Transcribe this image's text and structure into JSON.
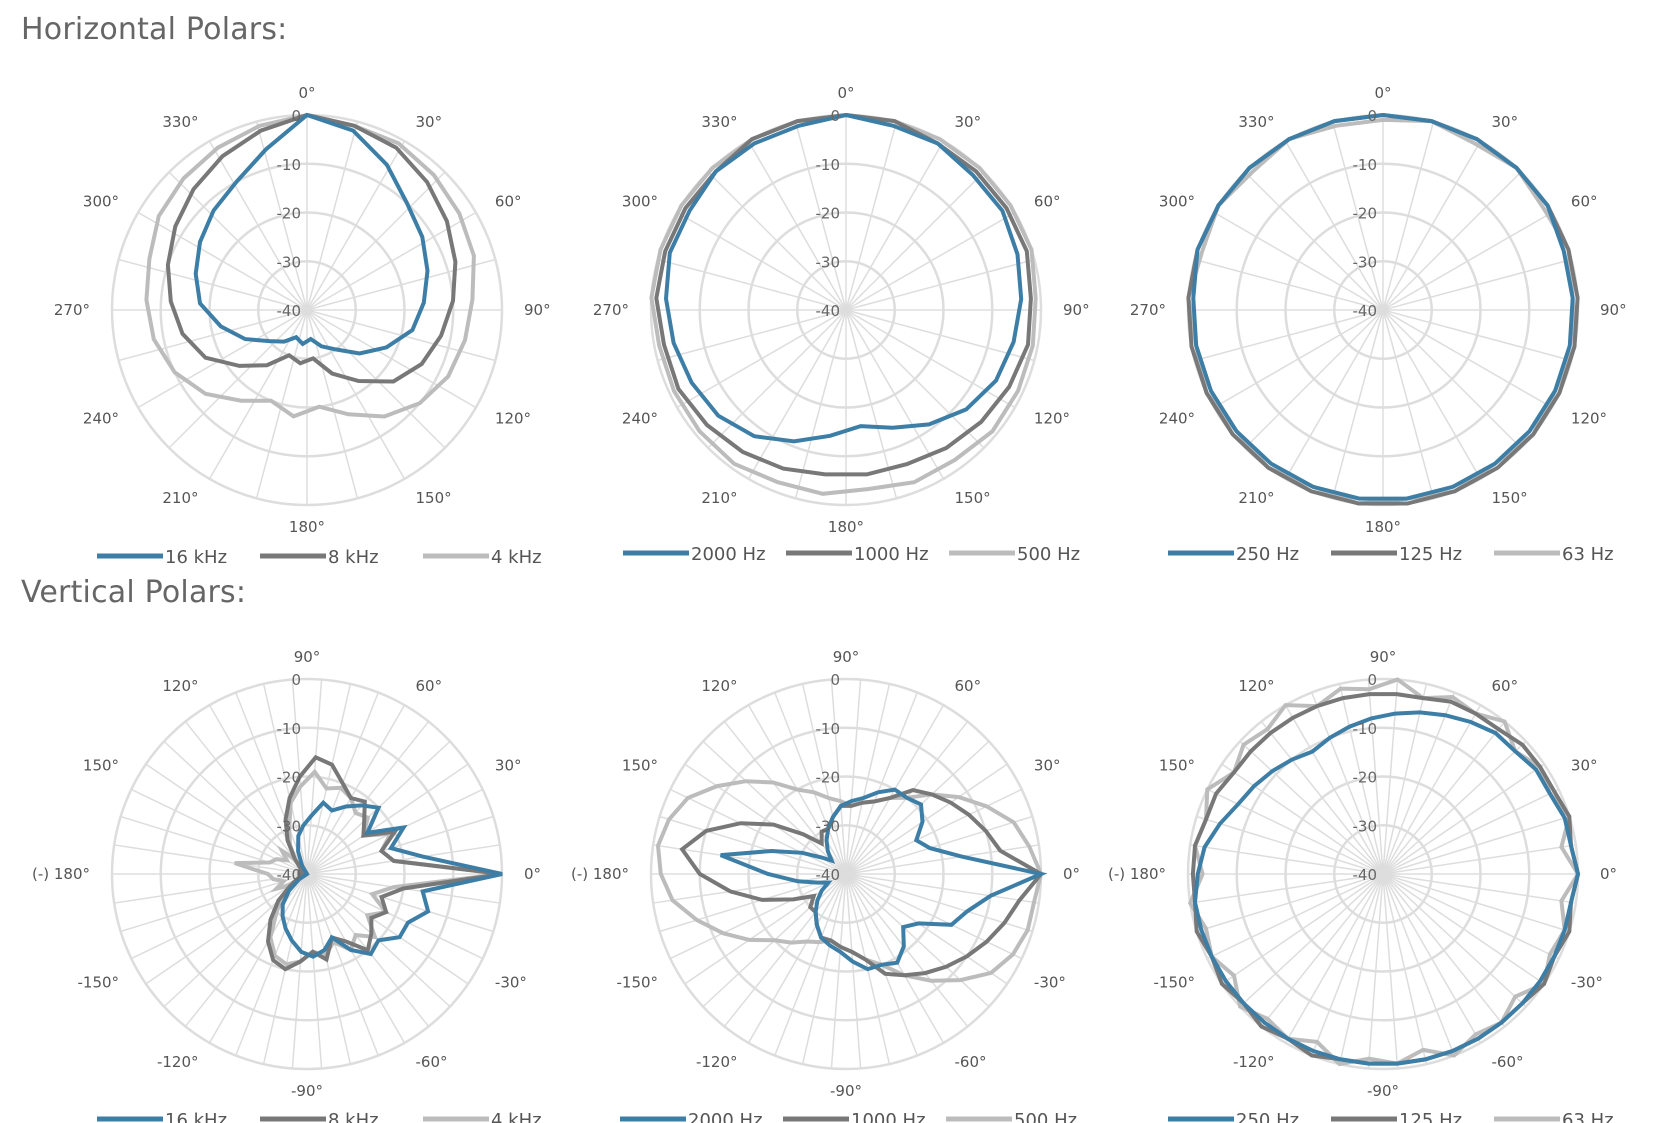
{
  "sections": {
    "horizontal": {
      "title": "Horizontal Polars:"
    },
    "vertical": {
      "title": "Vertical Polars:"
    }
  },
  "colors": {
    "series": [
      "#3d7ea6",
      "#787878",
      "#bcbcbc"
    ],
    "grid": "#dddddd"
  },
  "chart_data": [
    {
      "type": "polar",
      "group": "horizontal",
      "radial_ticks": [
        "0",
        "-10",
        "-20",
        "-30",
        "-40"
      ],
      "rlim": [
        -40,
        0
      ],
      "angle_labels": [
        {
          "deg": 0,
          "text": "0°"
        },
        {
          "deg": 30,
          "text": "30°"
        },
        {
          "deg": 60,
          "text": "60°"
        },
        {
          "deg": 90,
          "text": "90°"
        },
        {
          "deg": 120,
          "text": "120°"
        },
        {
          "deg": 150,
          "text": "150°"
        },
        {
          "deg": 180,
          "text": "180°"
        },
        {
          "deg": 210,
          "text": "210°"
        },
        {
          "deg": 240,
          "text": "240°"
        },
        {
          "deg": 270,
          "text": "270°"
        },
        {
          "deg": 300,
          "text": "300°"
        },
        {
          "deg": 330,
          "text": "330°"
        }
      ],
      "series": [
        {
          "name": "16 kHz",
          "values": [
            0,
            -2,
            -6,
            -10,
            -12,
            -14,
            -16,
            -18,
            -22,
            -26,
            -30,
            -32,
            -34,
            -33,
            -34,
            -32,
            -30,
            -26,
            -22,
            -18,
            -16,
            -14,
            -12,
            -10,
            -6
          ]
        },
        {
          "name": "8 kHz",
          "values": [
            0,
            -1,
            -2,
            -4,
            -6,
            -8,
            -10,
            -12,
            -14,
            -17,
            -22,
            -26,
            -30,
            -29,
            -30,
            -26,
            -22,
            -17,
            -14,
            -12,
            -10,
            -8,
            -6,
            -4,
            -2
          ]
        },
        {
          "name": "4 kHz",
          "values": [
            0,
            -1,
            -1,
            -2,
            -3,
            -4,
            -6,
            -7,
            -8,
            -10,
            -13,
            -17,
            -20,
            -18,
            -20,
            -17,
            -13,
            -10,
            -8,
            -7,
            -6,
            -4,
            -3,
            -2,
            -1
          ]
        }
      ]
    },
    {
      "type": "polar",
      "group": "horizontal",
      "radial_ticks": [
        "0",
        "-10",
        "-20",
        "-30",
        "-40"
      ],
      "rlim": [
        -40,
        0
      ],
      "angle_labels": [
        {
          "deg": 0,
          "text": "0°"
        },
        {
          "deg": 30,
          "text": "30°"
        },
        {
          "deg": 60,
          "text": "60°"
        },
        {
          "deg": 90,
          "text": "90°"
        },
        {
          "deg": 120,
          "text": "120°"
        },
        {
          "deg": 150,
          "text": "150°"
        },
        {
          "deg": 180,
          "text": "180°"
        },
        {
          "deg": 210,
          "text": "210°"
        },
        {
          "deg": 240,
          "text": "240°"
        },
        {
          "deg": 270,
          "text": "270°"
        },
        {
          "deg": 300,
          "text": "300°"
        },
        {
          "deg": 330,
          "text": "330°"
        }
      ],
      "series": [
        {
          "name": "2000 Hz",
          "values": [
            0,
            -1,
            -1,
            -2,
            -2,
            -3,
            -4,
            -5,
            -6,
            -8,
            -11,
            -14,
            -16,
            -14,
            -11,
            -8,
            -6,
            -5,
            -4,
            -3,
            -2,
            -2,
            -1,
            -1,
            -1
          ]
        },
        {
          "name": "1000 Hz",
          "values": [
            0,
            0,
            -1,
            -1,
            -1,
            -1,
            -2,
            -2,
            -3,
            -4,
            -5,
            -6,
            -6,
            -6,
            -5,
            -4,
            -3,
            -2,
            -2,
            -1,
            -1,
            -1,
            -1,
            0,
            0
          ]
        },
        {
          "name": "500 Hz",
          "values": [
            0,
            0,
            0,
            0,
            0,
            0,
            -1,
            -1,
            -1,
            -1,
            -2,
            -2,
            -3,
            -2,
            -2,
            -1,
            -1,
            -1,
            -1,
            0,
            0,
            0,
            0,
            0,
            0
          ]
        }
      ]
    },
    {
      "type": "polar",
      "group": "horizontal",
      "radial_ticks": [
        "0",
        "-10",
        "-20",
        "-30",
        "-40"
      ],
      "rlim": [
        -40,
        0
      ],
      "angle_labels": [
        {
          "deg": 0,
          "text": "0°"
        },
        {
          "deg": 30,
          "text": "30°"
        },
        {
          "deg": 60,
          "text": "60°"
        },
        {
          "deg": 90,
          "text": "90°"
        },
        {
          "deg": 120,
          "text": "120°"
        },
        {
          "deg": 150,
          "text": "150°"
        },
        {
          "deg": 180,
          "text": "180°"
        },
        {
          "deg": 210,
          "text": "210°"
        },
        {
          "deg": 240,
          "text": "240°"
        },
        {
          "deg": 270,
          "text": "270°"
        },
        {
          "deg": 300,
          "text": "300°"
        },
        {
          "deg": 330,
          "text": "330°"
        }
      ],
      "series": [
        {
          "name": "250 Hz",
          "values": [
            0,
            0,
            0,
            0,
            0,
            -1,
            -1,
            -1,
            -1,
            -1,
            -1,
            -1,
            -1,
            -1,
            -1,
            -1,
            -1,
            -1,
            -1,
            -1,
            0,
            0,
            0,
            0,
            0
          ]
        },
        {
          "name": "125 Hz",
          "values": [
            0,
            0,
            0,
            0,
            0,
            0,
            0,
            0,
            0,
            0,
            0,
            0,
            0,
            0,
            0,
            0,
            0,
            0,
            0,
            0,
            0,
            0,
            0,
            0,
            0
          ]
        },
        {
          "name": "63 Hz",
          "values": [
            -1,
            0,
            -1,
            0,
            -1,
            0,
            -1,
            0,
            -1,
            0,
            -1,
            0,
            -1,
            0,
            -1,
            0,
            -1,
            0,
            -1,
            0,
            -1,
            0,
            -1,
            0,
            -1
          ]
        }
      ]
    },
    {
      "type": "polar",
      "group": "vertical",
      "radial_ticks": [
        "0",
        "-10",
        "-20",
        "-30",
        "-40"
      ],
      "rlim": [
        -40,
        0
      ],
      "angle_labels": [
        {
          "deg": 90,
          "text": "90°"
        },
        {
          "deg": 60,
          "text": "60°"
        },
        {
          "deg": 30,
          "text": "30°"
        },
        {
          "deg": 0,
          "text": "0°"
        },
        {
          "deg": -30,
          "text": "-30°"
        },
        {
          "deg": -60,
          "text": "-60°"
        },
        {
          "deg": -90,
          "text": "-90°"
        },
        {
          "deg": -120,
          "text": "-120°"
        },
        {
          "deg": -150,
          "text": "-150°"
        },
        {
          "deg": 180,
          "text": "(-) 180°"
        },
        {
          "deg": 150,
          "text": "150°"
        },
        {
          "deg": 120,
          "text": "120°"
        }
      ],
      "series": [
        {
          "name": "16 kHz",
          "values": [
            0,
            -16,
            -22,
            -18,
            -25,
            -20,
            -22,
            -24,
            -26,
            -25,
            -28,
            -30,
            -32,
            -35,
            -38,
            -40,
            -40,
            -40,
            -40,
            -40,
            -40,
            -40,
            -40,
            -40,
            -40,
            -38,
            -35,
            -32,
            -30,
            -28,
            -26,
            -24,
            -23,
            -24,
            -26,
            -22,
            -19,
            -20,
            -17,
            -17,
            -14,
            -16
          ]
        },
        {
          "name": "8 kHz",
          "values": [
            0,
            -22,
            -24,
            -20,
            -26,
            -24,
            -21,
            -22,
            -20,
            -17,
            -16,
            -20,
            -24,
            -28,
            -32,
            -36,
            -38,
            -40,
            -38,
            -40,
            -38,
            -40,
            -38,
            -40,
            -38,
            -36,
            -32,
            -28,
            -24,
            -21,
            -20,
            -22,
            -24,
            -22,
            -26,
            -24,
            -20,
            -22,
            -24,
            -22,
            -24,
            -20
          ]
        },
        {
          "name": "4 kHz",
          "values": [
            0,
            -22,
            -24,
            -21,
            -26,
            -23,
            -24,
            -22,
            -21,
            -22,
            -19,
            -22,
            -25,
            -30,
            -33,
            -36,
            -33,
            -35,
            -33,
            -32,
            -25,
            -32,
            -33,
            -35,
            -33,
            -36,
            -33,
            -30,
            -25,
            -22,
            -21,
            -22,
            -24,
            -23,
            -25,
            -22,
            -24,
            -21,
            -25,
            -22,
            -26,
            -22
          ]
        }
      ]
    },
    {
      "type": "polar",
      "group": "vertical",
      "radial_ticks": [
        "0",
        "-10",
        "-20",
        "-30",
        "-40"
      ],
      "rlim": [
        -40,
        0
      ],
      "angle_labels": [
        {
          "deg": 90,
          "text": "90°"
        },
        {
          "deg": 60,
          "text": "60°"
        },
        {
          "deg": 30,
          "text": "30°"
        },
        {
          "deg": 0,
          "text": "0°"
        },
        {
          "deg": -30,
          "text": "-30°"
        },
        {
          "deg": -60,
          "text": "-60°"
        },
        {
          "deg": -90,
          "text": "-90°"
        },
        {
          "deg": -120,
          "text": "-120°"
        },
        {
          "deg": -150,
          "text": "-150°"
        },
        {
          "deg": 180,
          "text": "(-) 180°"
        },
        {
          "deg": 150,
          "text": "150°"
        },
        {
          "deg": 120,
          "text": "120°"
        }
      ],
      "series": [
        {
          "name": "2000 Hz",
          "values": [
            0,
            -16,
            -22,
            -24,
            -21,
            -19,
            -20,
            -20,
            -22,
            -24,
            -25,
            -26,
            -28,
            -30,
            -32,
            -34,
            -36,
            -34,
            -30,
            -24,
            -14,
            -24,
            -30,
            -34,
            -36,
            -34,
            -32,
            -30,
            -28,
            -26,
            -25,
            -24,
            -22,
            -20,
            -20,
            -19,
            -21,
            -24,
            -22,
            -16,
            -14,
            -10
          ]
        },
        {
          "name": "1000 Hz",
          "values": [
            0,
            -8,
            -10,
            -12,
            -14,
            -16,
            -18,
            -22,
            -24,
            -25,
            -26,
            -26,
            -28,
            -30,
            -30,
            -32,
            -28,
            -22,
            -16,
            -10,
            -6,
            -10,
            -16,
            -22,
            -28,
            -32,
            -30,
            -30,
            -28,
            -26,
            -26,
            -25,
            -24,
            -22,
            -18,
            -16,
            -14,
            -12,
            -10,
            -8,
            -6,
            -4
          ]
        },
        {
          "name": "500 Hz",
          "values": [
            0,
            -2,
            -4,
            -8,
            -12,
            -16,
            -20,
            -22,
            -24,
            -25,
            -26,
            -25,
            -24,
            -22,
            -20,
            -16,
            -12,
            -8,
            -4,
            -2,
            -1,
            -2,
            -4,
            -8,
            -12,
            -16,
            -20,
            -22,
            -24,
            -25,
            -26,
            -25,
            -24,
            -22,
            -20,
            -16,
            -12,
            -8,
            -4,
            -2,
            -1,
            -1
          ]
        }
      ]
    },
    {
      "type": "polar",
      "group": "vertical",
      "radial_ticks": [
        "0",
        "-10",
        "-20",
        "-30",
        "-40"
      ],
      "rlim": [
        -40,
        0
      ],
      "angle_labels": [
        {
          "deg": 90,
          "text": "90°"
        },
        {
          "deg": 60,
          "text": "60°"
        },
        {
          "deg": 30,
          "text": "30°"
        },
        {
          "deg": 0,
          "text": "0°"
        },
        {
          "deg": -30,
          "text": "-30°"
        },
        {
          "deg": -60,
          "text": "-60°"
        },
        {
          "deg": -90,
          "text": "-90°"
        },
        {
          "deg": -120,
          "text": "-120°"
        },
        {
          "deg": -150,
          "text": "-150°"
        },
        {
          "deg": 180,
          "text": "(-) 180°"
        },
        {
          "deg": 150,
          "text": "150°"
        },
        {
          "deg": 120,
          "text": "120°"
        }
      ],
      "series": [
        {
          "name": "250 Hz",
          "values": [
            0,
            -1,
            -1,
            -2,
            -2,
            -3,
            -3,
            -4,
            -5,
            -6,
            -7,
            -8,
            -9,
            -10,
            -11,
            -10,
            -9,
            -8,
            -7,
            -5,
            -3,
            -2,
            -1,
            -1,
            -1,
            -1,
            -1,
            -1,
            -1,
            -1,
            -1,
            -1,
            -1,
            -1,
            -1,
            -1,
            -1,
            -1,
            -1,
            -1,
            -1,
            -1
          ]
        },
        {
          "name": "125 Hz",
          "values": [
            0,
            -1,
            0,
            -1,
            -1,
            -1,
            -2,
            -2,
            -2,
            -3,
            -3,
            -3,
            -3,
            -3,
            -3,
            -3,
            -3,
            -3,
            -2,
            -2,
            -1,
            -1,
            -1,
            0,
            -1,
            0,
            -1,
            0,
            -1,
            0,
            -1,
            -1,
            -1,
            -1,
            -1,
            -1,
            -1,
            -1,
            0,
            -1,
            0,
            -1
          ]
        },
        {
          "name": "63 Hz",
          "values": [
            0,
            -3,
            0,
            -2,
            -1,
            -3,
            0,
            -2,
            -1,
            -3,
            0,
            -2,
            -1,
            -3,
            0,
            -2,
            -1,
            -3,
            0,
            -2,
            -1,
            -3,
            0,
            -2,
            -1,
            -3,
            0,
            -2,
            -1,
            -3,
            0,
            -2,
            -1,
            -3,
            0,
            -2,
            -1,
            -3,
            0,
            -2,
            -1,
            -3
          ]
        }
      ]
    }
  ]
}
